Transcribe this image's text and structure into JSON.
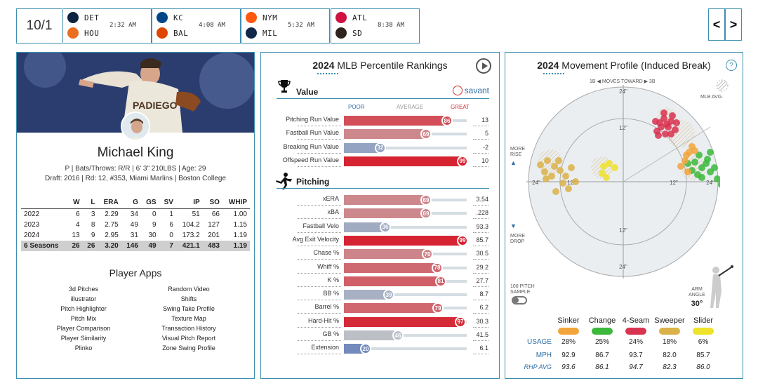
{
  "scoreboard": {
    "date": "10/1",
    "games": [
      {
        "away": "DET",
        "home": "HOU",
        "time": "2:32 AM",
        "away_icon": "tigers-logo-icon",
        "home_icon": "astros-logo-icon",
        "away_color": "#0c2340",
        "home_color": "#eb6e1f"
      },
      {
        "away": "KC",
        "home": "BAL",
        "time": "4:08 AM",
        "away_icon": "royals-logo-icon",
        "home_icon": "orioles-logo-icon",
        "away_color": "#004687",
        "home_color": "#df4601"
      },
      {
        "away": "NYM",
        "home": "MIL",
        "time": "5:32 AM",
        "away_icon": "mets-logo-icon",
        "home_icon": "brewers-logo-icon",
        "away_color": "#ff5910",
        "home_color": "#12284b"
      },
      {
        "away": "ATL",
        "home": "SD",
        "time": "8:38 AM",
        "away_icon": "braves-logo-icon",
        "home_icon": "padres-logo-icon",
        "away_color": "#ce1141",
        "home_color": "#2f241d"
      }
    ],
    "prev_label": "<",
    "next_label": ">"
  },
  "player": {
    "name": "Michael King",
    "info": "P | Bats/Throws: R/R | 6' 3\" 210LBS | Age: 29",
    "draft": "Draft: 2016 | Rd: 12, #353, Miami Marlins | Boston College",
    "stats_headers": [
      "",
      "W",
      "L",
      "ERA",
      "G",
      "GS",
      "SV",
      "IP",
      "SO",
      "WHIP"
    ],
    "stats_rows": [
      [
        "2022",
        "6",
        "3",
        "2.29",
        "34",
        "0",
        "1",
        "51",
        "66",
        "1.00"
      ],
      [
        "2023",
        "4",
        "8",
        "2.75",
        "49",
        "9",
        "6",
        "104.2",
        "127",
        "1.15"
      ],
      [
        "2024",
        "13",
        "9",
        "2.95",
        "31",
        "30",
        "0",
        "173.2",
        "201",
        "1.19"
      ]
    ],
    "stats_total": [
      "6 Seasons",
      "26",
      "26",
      "3.20",
      "146",
      "49",
      "7",
      "421.1",
      "483",
      "1.19"
    ]
  },
  "apps": {
    "title": "Player Apps",
    "left": [
      "3d Pitches",
      "illustrator",
      "Pitch Highlighter",
      "Pitch Mix",
      "Player Comparison",
      "Player Similarity",
      "Plinko"
    ],
    "right": [
      "Random Video",
      "Shifts",
      "Swing Take Profile",
      "Texture Map",
      "Transaction History",
      "Visual Pitch Report",
      "Zone Swing Profile"
    ]
  },
  "percentiles": {
    "year": "2024",
    "title": "MLB Percentile Rankings",
    "value_heading": "Value",
    "pitching_heading": "Pitching",
    "savant": "savant",
    "poor": "POOR",
    "average": "AVERAGE",
    "great": "GREAT",
    "value_rows": [
      {
        "label": "Pitching Run Value",
        "pct": 86,
        "value": "13"
      },
      {
        "label": "Fastball Run Value",
        "pct": 69,
        "value": "5"
      },
      {
        "label": "Breaking Run Value",
        "pct": 32,
        "value": "-2"
      },
      {
        "label": "Offspeed Run Value",
        "pct": 99,
        "value": "10"
      }
    ],
    "pitching_rows": [
      {
        "label": "xERA",
        "pct": 69,
        "value": "3.54"
      },
      {
        "label": "xBA",
        "pct": 69,
        "value": ".228"
      },
      {
        "label": "Fastball Velo",
        "pct": 36,
        "value": "93.3"
      },
      {
        "label": "Avg Exit Velocity",
        "pct": 99,
        "value": "85.7"
      },
      {
        "label": "Chase %",
        "pct": 70,
        "value": "30.5"
      },
      {
        "label": "Whiff %",
        "pct": 78,
        "value": "29.2"
      },
      {
        "label": "K %",
        "pct": 81,
        "value": "27.7"
      },
      {
        "label": "BB %",
        "pct": 39,
        "value": "8.7"
      },
      {
        "label": "Barrel %",
        "pct": 79,
        "value": "6.2"
      },
      {
        "label": "Hard-Hit %",
        "pct": 97,
        "value": "30.3"
      },
      {
        "label": "GB %",
        "pct": 46,
        "value": "41.5"
      },
      {
        "label": "Extension",
        "pct": 20,
        "value": "6.1"
      }
    ]
  },
  "movement": {
    "year": "2024",
    "title": "Movement Profile (Induced Break)",
    "help": "?",
    "moves_toward": "1B ◀  MOVES TOWARD  ▶ 3B",
    "mlb_avg": "MLB AVG.",
    "more_rise": "MORE RISE",
    "more_drop": "MORE DROP",
    "rings": [
      "24\"",
      "12\""
    ],
    "sample": "100 PITCH SAMPLE",
    "arm_angle_label": "ARM ANGLE",
    "arm_angle": "30°",
    "pitch_types": [
      {
        "name": "Sinker",
        "color": "#f2a53a",
        "usage": "28%",
        "mph": "92.9",
        "rhp": "93.6"
      },
      {
        "name": "Change",
        "color": "#3cb83c",
        "usage": "25%",
        "mph": "86.7",
        "rhp": "86.1"
      },
      {
        "name": "4-Seam",
        "color": "#d83350",
        "usage": "24%",
        "mph": "93.7",
        "rhp": "94.7"
      },
      {
        "name": "Sweeper",
        "color": "#dbb24a",
        "usage": "18%",
        "mph": "82.0",
        "rhp": "82.3"
      },
      {
        "name": "Slider",
        "color": "#eee22a",
        "usage": "6%",
        "mph": "85.7",
        "rhp": "86.0"
      }
    ],
    "row_labels": {
      "usage": "USAGE",
      "mph": "MPH",
      "rhp": "RHP AVG"
    }
  }
}
